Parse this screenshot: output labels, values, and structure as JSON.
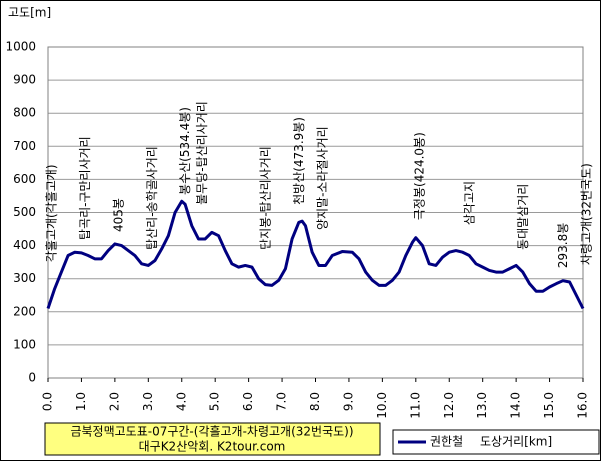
{
  "chart_data": {
    "type": "line",
    "title": "금북정맥고도표-07구간-(각흘고개-차령고개(32번국도))",
    "subtitle": "대구K2산악회. K2tour.com",
    "y_label": "고도[m]",
    "x_label": "도상거리[km]",
    "ylim": [
      0,
      1000
    ],
    "yticks": [
      0,
      100,
      200,
      300,
      400,
      500,
      600,
      700,
      800,
      900,
      1000
    ],
    "xlim": [
      0,
      16
    ],
    "xticks": [
      {
        "value": 0,
        "label": "0.0"
      },
      {
        "value": 1,
        "label": "1.0"
      },
      {
        "value": 2,
        "label": "2.0"
      },
      {
        "value": 3,
        "label": "3.0"
      },
      {
        "value": 4,
        "label": "4.0"
      },
      {
        "value": 5,
        "label": "5.0"
      },
      {
        "value": 6,
        "label": "6.0"
      },
      {
        "value": 7,
        "label": "7.0"
      },
      {
        "value": 8,
        "label": "8.0"
      },
      {
        "value": 9,
        "label": "9.0"
      },
      {
        "value": 10,
        "label": "10.0"
      },
      {
        "value": 11,
        "label": "11.0"
      },
      {
        "value": 12,
        "label": "12.0"
      },
      {
        "value": 13,
        "label": "13.0"
      },
      {
        "value": 14,
        "label": "14.0"
      },
      {
        "value": 15,
        "label": "15.0"
      },
      {
        "value": 16,
        "label": "16.0"
      }
    ],
    "grid": true,
    "legend": "bottom-right",
    "x": [
      0,
      0.2,
      0.4,
      0.6,
      0.8,
      1.0,
      1.2,
      1.4,
      1.6,
      1.8,
      2.0,
      2.2,
      2.4,
      2.6,
      2.8,
      3.0,
      3.2,
      3.4,
      3.6,
      3.8,
      4.0,
      4.1,
      4.3,
      4.5,
      4.7,
      4.9,
      5.1,
      5.3,
      5.5,
      5.7,
      5.9,
      6.1,
      6.3,
      6.5,
      6.7,
      6.9,
      7.1,
      7.3,
      7.5,
      7.6,
      7.7,
      7.9,
      8.1,
      8.3,
      8.5,
      8.8,
      9.1,
      9.3,
      9.5,
      9.7,
      9.9,
      10.1,
      10.3,
      10.5,
      10.7,
      10.9,
      11.0,
      11.2,
      11.4,
      11.6,
      11.8,
      12.0,
      12.2,
      12.4,
      12.6,
      12.8,
      13.0,
      13.2,
      13.4,
      13.6,
      13.8,
      14.0,
      14.2,
      14.4,
      14.6,
      14.8,
      15.0,
      15.2,
      15.4,
      15.6,
      15.8,
      16.0
    ],
    "series": [
      {
        "name": "권한철",
        "color": "#000080",
        "values": [
          210,
          270,
          320,
          370,
          380,
          378,
          370,
          360,
          360,
          385,
          405,
          400,
          385,
          370,
          345,
          340,
          355,
          390,
          430,
          500,
          534,
          525,
          460,
          420,
          420,
          440,
          430,
          385,
          345,
          335,
          340,
          335,
          300,
          282,
          280,
          295,
          330,
          420,
          470,
          474,
          460,
          380,
          340,
          340,
          370,
          382,
          380,
          360,
          320,
          295,
          280,
          280,
          295,
          320,
          370,
          410,
          424,
          400,
          345,
          340,
          365,
          380,
          385,
          380,
          370,
          345,
          335,
          325,
          320,
          320,
          330,
          340,
          320,
          285,
          262,
          262,
          275,
          285,
          294,
          290,
          250,
          210
        ]
      }
    ],
    "annotations": [
      {
        "text": "각흘고개(각흘고개)",
        "x": 0.0,
        "y": 350
      },
      {
        "text": "탑곡리-구만리사거리",
        "x": 1.0,
        "y": 417
      },
      {
        "text": "405봉",
        "x": 2.0,
        "y": 441
      },
      {
        "text": "탑산리-송학골사거리",
        "x": 3.0,
        "y": 387
      },
      {
        "text": "봉수산(534.4봉)",
        "x": 4.0,
        "y": 553
      },
      {
        "text": "불무당-탑산리사거리",
        "x": 4.5,
        "y": 523
      },
      {
        "text": "단지봉-탑산리사거리",
        "x": 6.4,
        "y": 387
      },
      {
        "text": "천방산(473.9봉)",
        "x": 7.4,
        "y": 523
      },
      {
        "text": "양지말-소라절사거리",
        "x": 8.1,
        "y": 447
      },
      {
        "text": "극정봉(424.0봉)",
        "x": 11.0,
        "y": 477
      },
      {
        "text": "삼각고지",
        "x": 12.5,
        "y": 462
      },
      {
        "text": "동대말삼거리",
        "x": 14.1,
        "y": 387
      },
      {
        "text": "293.8봉",
        "x": 15.3,
        "y": 332
      },
      {
        "text": "차령고개(32번국도)",
        "x": 16.0,
        "y": 341
      }
    ]
  }
}
